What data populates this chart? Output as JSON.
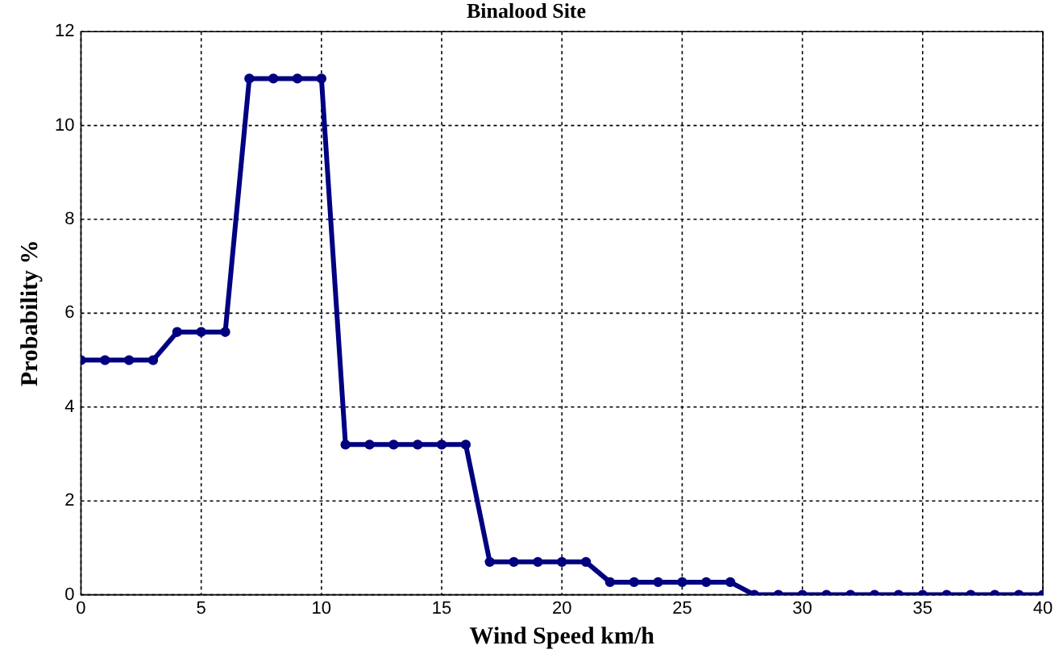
{
  "chart_data": {
    "type": "line",
    "title": "Binalood Site",
    "xlabel": "Wind Speed km/h",
    "ylabel": "Probability %",
    "x": [
      0,
      1,
      2,
      3,
      4,
      5,
      6,
      7,
      8,
      9,
      10,
      11,
      12,
      13,
      14,
      15,
      16,
      17,
      18,
      19,
      20,
      21,
      22,
      23,
      24,
      25,
      26,
      27,
      28,
      29,
      30,
      31,
      32,
      33,
      34,
      35,
      36,
      37,
      38,
      39,
      40
    ],
    "series": [
      {
        "color": "#000080",
        "values": [
          5,
          5,
          5,
          5,
          5.6,
          5.6,
          5.6,
          11,
          11,
          11,
          11,
          3.2,
          3.2,
          3.2,
          3.2,
          3.2,
          3.2,
          0.7,
          0.7,
          0.7,
          0.7,
          0.7,
          0.27,
          0.27,
          0.27,
          0.27,
          0.27,
          0.27,
          0,
          0,
          0,
          0,
          0,
          0,
          0,
          0,
          0,
          0,
          0,
          0,
          0
        ]
      }
    ],
    "xlim": [
      0,
      40
    ],
    "xticks": [
      0,
      5,
      10,
      15,
      20,
      25,
      30,
      35,
      40
    ],
    "ylim": [
      0,
      12
    ],
    "yticks": [
      0,
      2,
      4,
      6,
      8,
      10,
      12
    ],
    "grid": true,
    "marker": "circle",
    "line_style": "solid",
    "legend": false
  }
}
